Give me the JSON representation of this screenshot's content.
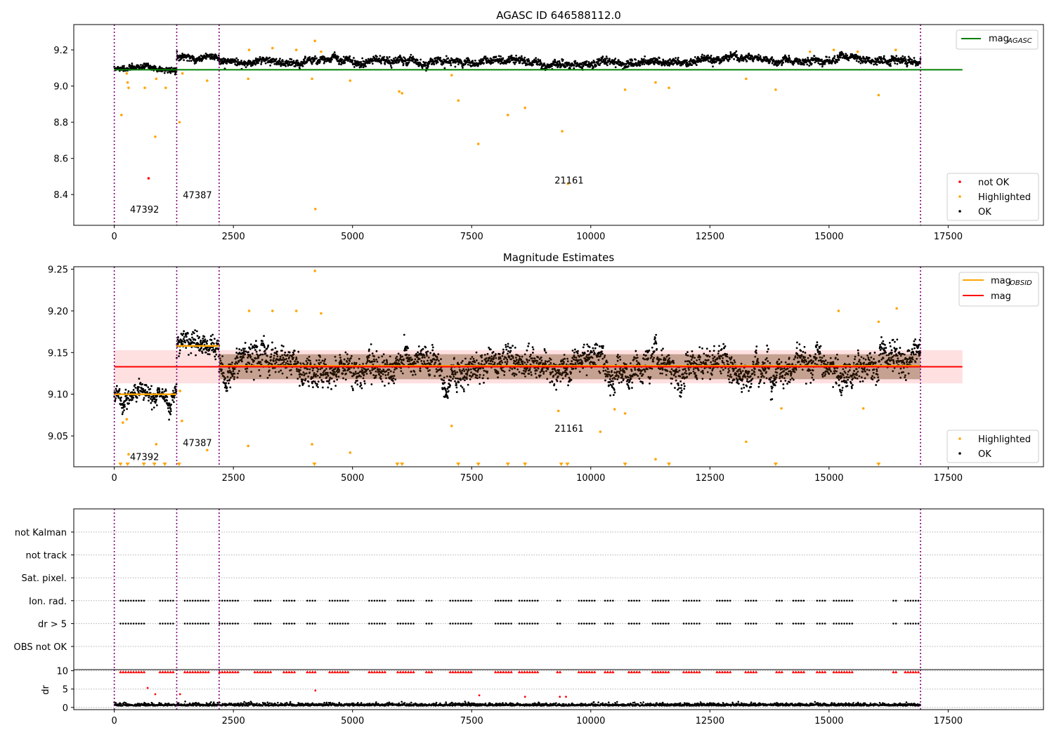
{
  "chart_data": [
    {
      "type": "scatter",
      "title": "AGASC ID 646588112.0",
      "xlim": [
        -850,
        19500
      ],
      "ylim": [
        8.23,
        9.34
      ],
      "xticks": [
        0,
        2500,
        5000,
        7500,
        10000,
        12500,
        15000,
        17500
      ],
      "yticks": [
        8.4,
        8.6,
        8.8,
        9.0,
        9.2
      ],
      "ytick_labels": [
        "8.4",
        "8.6",
        "8.8",
        "9.0",
        "9.2"
      ],
      "obsid_boundaries": [
        0,
        1310,
        2200,
        16920
      ],
      "annotations": [
        {
          "text": "47392",
          "x": 330,
          "y": 8.3
        },
        {
          "text": "47387",
          "x": 1440,
          "y": 8.38
        },
        {
          "text": "21161",
          "x": 9240,
          "y": 8.46
        }
      ],
      "lines": [
        {
          "name_main": "mag",
          "name_sub": "AGASC",
          "color": "#008000",
          "y": 9.09,
          "x": [
            0,
            17800
          ]
        }
      ],
      "segments": [
        {
          "x0": 0,
          "x1": 1310,
          "level": 9.096,
          "noise": 0.012
        },
        {
          "x0": 1310,
          "x1": 2200,
          "level": 9.162,
          "noise": 0.013
        },
        {
          "x0": 2200,
          "x1": 16920,
          "level": 9.135,
          "noise": 0.016
        }
      ],
      "series": [
        {
          "name": "not OK",
          "color": "#ff0000",
          "points": [
            [
              720,
              8.49
            ]
          ]
        },
        {
          "name": "Highlighted",
          "color": "#ffa500",
          "points": [
            [
              150,
              8.84
            ],
            [
              260,
              9.07
            ],
            [
              280,
              9.02
            ],
            [
              300,
              8.99
            ],
            [
              640,
              8.99
            ],
            [
              860,
              8.72
            ],
            [
              880,
              9.04
            ],
            [
              1080,
              8.99
            ],
            [
              1370,
              8.8
            ],
            [
              1430,
              9.07
            ],
            [
              1950,
              9.03
            ],
            [
              2810,
              9.04
            ],
            [
              2830,
              9.2
            ],
            [
              3320,
              9.21
            ],
            [
              3820,
              9.2
            ],
            [
              4150,
              9.04
            ],
            [
              4210,
              9.25
            ],
            [
              4220,
              8.32
            ],
            [
              4340,
              9.19
            ],
            [
              4950,
              9.03
            ],
            [
              5980,
              8.97
            ],
            [
              6040,
              8.96
            ],
            [
              7080,
              9.06
            ],
            [
              7220,
              8.92
            ],
            [
              7640,
              8.68
            ],
            [
              8260,
              8.84
            ],
            [
              8620,
              8.88
            ],
            [
              9400,
              8.75
            ],
            [
              9520,
              8.46
            ],
            [
              10720,
              8.98
            ],
            [
              11360,
              9.02
            ],
            [
              11640,
              8.99
            ],
            [
              13260,
              9.04
            ],
            [
              13880,
              8.98
            ],
            [
              14600,
              9.19
            ],
            [
              15100,
              9.2
            ],
            [
              15600,
              9.19
            ],
            [
              16040,
              8.95
            ],
            [
              16400,
              9.2
            ]
          ]
        },
        {
          "name": "OK",
          "color": "#000000",
          "points": []
        }
      ],
      "legend_lines_loc": "upper-right",
      "legend_points_loc": "lower-right"
    },
    {
      "type": "scatter",
      "title": "Magnitude Estimates",
      "xlim": [
        -850,
        19500
      ],
      "ylim": [
        9.013,
        9.253
      ],
      "xticks": [
        0,
        2500,
        5000,
        7500,
        10000,
        12500,
        15000,
        17500
      ],
      "yticks": [
        9.05,
        9.1,
        9.15,
        9.2,
        9.25
      ],
      "ytick_labels": [
        "9.05",
        "9.10",
        "9.15",
        "9.20",
        "9.25"
      ],
      "obsid_boundaries": [
        0,
        1310,
        2200,
        16920
      ],
      "annotations": [
        {
          "text": "47392",
          "x": 330,
          "y": 9.021
        },
        {
          "text": "47387",
          "x": 1440,
          "y": 9.038
        },
        {
          "text": "21161",
          "x": 9240,
          "y": 9.055
        }
      ],
      "band": {
        "y0": 9.113,
        "y1": 9.153,
        "x": [
          0,
          17800
        ],
        "color": "#ff0000",
        "opacity": 0.12
      },
      "lines": [
        {
          "name_main": "mag",
          "name_sub": "OBSID",
          "color": "#ffa500",
          "segments": [
            [
              0,
              1310,
              9.1
            ],
            [
              1310,
              2200,
              9.158
            ],
            [
              2200,
              16920,
              9.134
            ]
          ]
        },
        {
          "name_main": "mag",
          "name_sub": "",
          "color": "#ff0000",
          "y": 9.133,
          "x": [
            0,
            17800
          ]
        }
      ],
      "segments": [
        {
          "x0": 0,
          "x1": 1310,
          "level": 9.1,
          "noise": 0.008
        },
        {
          "x0": 1310,
          "x1": 2200,
          "level": 9.158,
          "noise": 0.01
        },
        {
          "x0": 2200,
          "x1": 16920,
          "level": 9.134,
          "noise": 0.013
        }
      ],
      "series": [
        {
          "name": "Highlighted",
          "color": "#ffa500",
          "points": [
            [
              180,
              9.066
            ],
            [
              260,
              9.07
            ],
            [
              300,
              9.028
            ],
            [
              880,
              9.04
            ],
            [
              1380,
              9.104
            ],
            [
              1420,
              9.068
            ],
            [
              1950,
              9.033
            ],
            [
              2810,
              9.038
            ],
            [
              2830,
              9.2
            ],
            [
              3320,
              9.2
            ],
            [
              3820,
              9.2
            ],
            [
              4150,
              9.04
            ],
            [
              4210,
              9.248
            ],
            [
              4340,
              9.197
            ],
            [
              4950,
              9.03
            ],
            [
              7080,
              9.062
            ],
            [
              9320,
              9.08
            ],
            [
              10200,
              9.055
            ],
            [
              10500,
              9.082
            ],
            [
              10720,
              9.077
            ],
            [
              11360,
              9.022
            ],
            [
              13260,
              9.043
            ],
            [
              14000,
              9.083
            ],
            [
              15200,
              9.2
            ],
            [
              15720,
              9.083
            ],
            [
              16040,
              9.187
            ],
            [
              16420,
              9.203
            ]
          ]
        },
        {
          "name": "OK",
          "color": "#000000",
          "points": []
        }
      ],
      "below_markers_x": [
        130,
        280,
        620,
        840,
        1060,
        1360,
        4200,
        5940,
        6040,
        7220,
        7640,
        8260,
        8620,
        9380,
        9510,
        10720,
        11640,
        13880,
        16040
      ],
      "legend_lines_loc": "upper-right",
      "legend_points_loc": "lower-right"
    },
    {
      "type": "scatter",
      "title": "",
      "xlim": [
        -850,
        19500
      ],
      "categories": [
        "not Kalman",
        "not track",
        "Sat. pixel.",
        "Ion. rad.",
        "dr > 5",
        "OBS not OK"
      ],
      "flagged_runs": [
        [
          130,
          640
        ],
        [
          960,
          1250
        ],
        [
          1480,
          1980
        ],
        [
          2210,
          2600
        ],
        [
          2950,
          3300
        ],
        [
          3560,
          3820
        ],
        [
          4050,
          4230
        ],
        [
          4520,
          4950
        ],
        [
          5350,
          5700
        ],
        [
          5950,
          6300
        ],
        [
          6550,
          6700
        ],
        [
          7050,
          7500
        ],
        [
          8000,
          8350
        ],
        [
          8500,
          8900
        ],
        [
          9300,
          9400
        ],
        [
          9750,
          10100
        ],
        [
          10300,
          10500
        ],
        [
          10800,
          11050
        ],
        [
          11300,
          11650
        ],
        [
          11950,
          12300
        ],
        [
          12650,
          12950
        ],
        [
          13250,
          13500
        ],
        [
          13900,
          14050
        ],
        [
          14250,
          14500
        ],
        [
          14750,
          14950
        ],
        [
          15100,
          15500
        ],
        [
          16350,
          16420
        ],
        [
          16600,
          16900
        ]
      ],
      "obsid_boundaries": [
        0,
        1310,
        2200,
        16920
      ]
    },
    {
      "type": "scatter",
      "title": "",
      "ylabel": "dr",
      "xlim": [
        -850,
        19500
      ],
      "ylim": [
        -0.6,
        10.3
      ],
      "xticks": [
        0,
        2500,
        5000,
        7500,
        10000,
        12500,
        15000,
        17500
      ],
      "yticks": [
        0,
        5,
        10
      ],
      "ytick_labels": [
        "0",
        "5",
        "10"
      ],
      "obsid_boundaries": [
        0,
        1310,
        2200,
        16920
      ],
      "series": [
        {
          "name": "dr",
          "color": "#000000",
          "points": []
        },
        {
          "name": "dr > 5",
          "color": "#ff0000",
          "points": [
            [
              700,
              5.3
            ],
            [
              860,
              3.6
            ],
            [
              1380,
              3.6
            ],
            [
              4220,
              4.6
            ],
            [
              7660,
              3.3
            ],
            [
              8620,
              2.9
            ],
            [
              9350,
              2.9
            ],
            [
              9480,
              2.9
            ]
          ]
        }
      ]
    }
  ],
  "legends": {
    "top_lines": [
      {
        "main": "mag",
        "sub": "AGASC",
        "color": "#008000"
      }
    ],
    "top_points": [
      {
        "label": "not OK",
        "color": "#ff0000"
      },
      {
        "label": "Highlighted",
        "color": "#ffa500"
      },
      {
        "label": "OK",
        "color": "#000000"
      }
    ],
    "mid_lines": [
      {
        "main": "mag",
        "sub": "OBSID",
        "color": "#ffa500"
      },
      {
        "main": "mag",
        "sub": "",
        "color": "#ff0000"
      }
    ],
    "mid_points": [
      {
        "label": "Highlighted",
        "color": "#ffa500"
      },
      {
        "label": "OK",
        "color": "#000000"
      }
    ]
  }
}
